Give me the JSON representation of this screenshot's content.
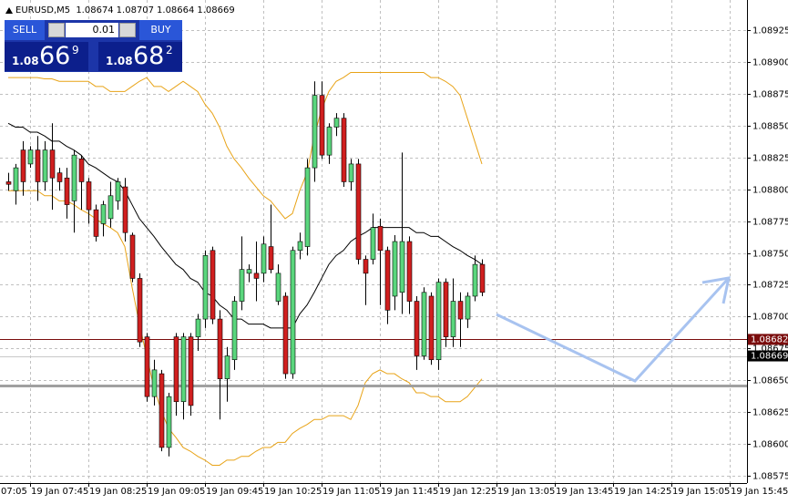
{
  "header": {
    "symbol": "EURUSD,M5",
    "ohlc": [
      "1.08674",
      "1.08707",
      "1.08664",
      "1.08669"
    ]
  },
  "trade_panel": {
    "sell": "SELL",
    "lot": "0.01",
    "buy": "BUY",
    "bid": {
      "big": "1.08",
      "pips": "66",
      "point": "9"
    },
    "ask": {
      "big": "1.08",
      "pips": "68",
      "point": "2"
    }
  },
  "chart_data": {
    "type": "candlestick",
    "categories": [
      "07:05",
      null,
      null,
      null,
      null,
      null,
      null,
      null,
      "19 Jan 07:45",
      null,
      null,
      null,
      null,
      null,
      null,
      null,
      "19 Jan 08:25",
      null,
      null,
      null,
      null,
      null,
      null,
      null,
      "19 Jan 09:05",
      null,
      null,
      null,
      null,
      null,
      null,
      null,
      "19 Jan 09:45",
      null,
      null,
      null,
      null,
      null,
      null,
      null,
      "19 Jan 10:25",
      null,
      null,
      null,
      null,
      null,
      null,
      null,
      "19 Jan 11:05",
      null,
      null,
      null,
      null,
      null,
      null,
      null,
      "19 Jan 11:45",
      null,
      null,
      null,
      null,
      null,
      null,
      null,
      "19 Jan 12:25",
      null,
      null,
      null,
      null,
      null,
      null,
      null,
      "19 Jan 13:05",
      null,
      null,
      null,
      null,
      null,
      null,
      null,
      "19 Jan 13:45",
      null,
      null,
      null,
      null,
      null,
      null,
      null,
      "19 Jan 14:25",
      null,
      null,
      null,
      null,
      null,
      null,
      null,
      "19 Jan 15:05",
      null,
      null,
      null,
      null,
      null,
      null,
      null,
      "19 Jan 15:45",
      null,
      null
    ],
    "open": [
      null,
      null,
      null,
      null,
      null,
      1.08806,
      1.08799,
      1.08831,
      1.0882,
      1.08831,
      1.08806,
      1.08831,
      1.08813,
      1.08809,
      1.08791,
      1.08824,
      1.08806,
      1.08784,
      1.08773,
      1.08777,
      1.08791,
      1.08802,
      1.08764,
      1.0873,
      1.08684,
      1.08637,
      1.08655,
      1.08597,
      1.08684,
      1.08633,
      1.08684,
      1.08684,
      1.08698,
      1.08752,
      1.08698,
      1.08651,
      1.08666,
      1.08712,
      1.08734,
      1.08734,
      1.08734,
      1.08755,
      1.08712,
      1.08716,
      1.08655,
      1.08752,
      1.08755,
      1.08817,
      1.08874,
      1.08827,
      1.08849,
      1.08856,
      1.08806,
      1.0882,
      1.08745,
      1.08745,
      1.08771,
      1.08752,
      1.08716,
      1.08719,
      1.08759,
      1.08712,
      1.08669,
      1.08716,
      1.08666,
      1.08727,
      1.08684,
      1.08712,
      1.08698,
      1.08716,
      1.08741,
      null,
      null,
      null,
      null,
      null,
      null,
      null,
      null,
      null,
      null,
      null,
      null,
      null,
      null,
      null,
      null,
      null,
      null,
      null,
      null,
      null,
      null,
      null,
      null,
      null,
      null,
      null,
      null,
      null,
      null,
      null,
      null,
      null,
      null,
      null,
      null
    ],
    "high": [
      null,
      null,
      null,
      null,
      null,
      1.08813,
      1.0882,
      1.08838,
      1.08834,
      1.08842,
      1.08838,
      1.08852,
      1.08817,
      1.08817,
      1.08831,
      1.08827,
      1.08809,
      1.08788,
      1.08791,
      1.08806,
      1.08809,
      1.08809,
      1.08766,
      1.08734,
      1.08687,
      1.08666,
      1.08658,
      1.0864,
      1.08687,
      1.08687,
      1.08687,
      1.08702,
      1.08752,
      1.08755,
      1.08705,
      1.08676,
      1.08716,
      1.08763,
      1.08741,
      1.08759,
      1.08763,
      1.08788,
      1.08741,
      1.08719,
      1.08755,
      1.08766,
      1.08824,
      1.08885,
      1.08885,
      1.08852,
      1.0886,
      1.0886,
      1.08824,
      1.08824,
      1.08748,
      1.08781,
      1.08777,
      1.08755,
      1.08764,
      1.08829,
      1.08763,
      1.08716,
      1.08723,
      1.08719,
      1.0873,
      1.0873,
      1.0873,
      1.08719,
      1.08719,
      1.08748,
      1.08745,
      null,
      null,
      null,
      null,
      null,
      null,
      null,
      null,
      null,
      null,
      null,
      null,
      null,
      null,
      null,
      null,
      null,
      null,
      null,
      null,
      null,
      null,
      null,
      null,
      null,
      null,
      null,
      null,
      null,
      null,
      null,
      null,
      null,
      null,
      null,
      null
    ],
    "low": [
      null,
      null,
      null,
      null,
      null,
      1.08799,
      1.08788,
      1.08795,
      1.08817,
      1.08791,
      1.08799,
      1.08784,
      1.08799,
      1.08777,
      1.08766,
      1.08784,
      1.08773,
      1.08759,
      1.08763,
      1.0877,
      1.08784,
      1.08759,
      1.08727,
      1.08676,
      1.08633,
      1.0863,
      1.08594,
      1.0859,
      1.08622,
      1.08619,
      1.08622,
      1.08673,
      1.08691,
      1.08694,
      1.08619,
      1.08633,
      1.08658,
      1.08705,
      1.08727,
      1.08712,
      1.08727,
      1.08734,
      1.08709,
      1.08651,
      1.08651,
      1.08745,
      1.08748,
      1.08806,
      1.08824,
      1.0882,
      1.08842,
      1.08802,
      1.08799,
      1.08741,
      1.08709,
      1.08741,
      1.08709,
      1.08694,
      1.08705,
      1.08702,
      1.08702,
      1.08658,
      1.08666,
      1.08662,
      1.08658,
      1.08676,
      1.08676,
      1.08676,
      1.08691,
      1.08712,
      1.08716,
      null,
      null,
      null,
      null,
      null,
      null,
      null,
      null,
      null,
      null,
      null,
      null,
      null,
      null,
      null,
      null,
      null,
      null,
      null,
      null,
      null,
      null,
      null,
      null,
      null,
      null,
      null,
      null,
      null,
      null,
      null,
      null,
      null,
      null,
      null,
      null
    ],
    "close": [
      null,
      null,
      null,
      null,
      null,
      1.08804,
      1.08817,
      1.08806,
      1.08831,
      1.08806,
      1.08831,
      1.08809,
      1.08806,
      1.08788,
      1.08827,
      1.08806,
      1.08784,
      1.08763,
      1.08788,
      1.08795,
      1.08806,
      1.08766,
      1.0873,
      1.0868,
      1.08637,
      1.08658,
      1.08597,
      1.08637,
      1.08633,
      1.08684,
      1.0863,
      1.08698,
      1.08748,
      1.08698,
      1.08651,
      1.08669,
      1.08712,
      1.08737,
      1.08737,
      1.0873,
      1.08757,
      1.08737,
      1.08734,
      1.08655,
      1.08752,
      1.08759,
      1.08817,
      1.08874,
      1.08827,
      1.08849,
      1.08856,
      1.08806,
      1.0882,
      1.08745,
      1.08734,
      1.0877,
      1.08752,
      1.08705,
      1.08759,
      1.08759,
      1.08712,
      1.08669,
      1.08719,
      1.08666,
      1.08727,
      1.08684,
      1.08712,
      1.08698,
      1.08716,
      1.08741,
      1.08719,
      null,
      null,
      null,
      null,
      null,
      null,
      null,
      null,
      null,
      null,
      null,
      null,
      null,
      null,
      null,
      null,
      null,
      null,
      null,
      null,
      null,
      null,
      null,
      null,
      null,
      null,
      null,
      null,
      null,
      null,
      null,
      null,
      null,
      null,
      null,
      null
    ],
    "up_color": "#5ad67d",
    "down_color": "#d01f1f",
    "wick_color": "#000000",
    "lines": [
      {
        "color": "#000000",
        "values": [
          null,
          null,
          null,
          null,
          null,
          1.08852,
          1.08849,
          1.08849,
          1.08845,
          1.08845,
          1.08842,
          1.08838,
          1.08838,
          1.08834,
          1.08831,
          1.08827,
          1.0882,
          1.08817,
          1.08813,
          1.08809,
          1.08806,
          1.08799,
          1.08788,
          1.08777,
          1.0877,
          1.08763,
          1.08755,
          1.08748,
          1.08741,
          1.08737,
          1.0873,
          1.08727,
          1.08719,
          1.08716,
          1.08709,
          1.08705,
          1.08698,
          1.08698,
          1.08694,
          1.08694,
          1.08694,
          1.08691,
          1.08691,
          1.08691,
          1.08691,
          1.08702,
          1.08709,
          1.08719,
          1.0873,
          1.08741,
          1.08748,
          1.08752,
          1.08759,
          1.08763,
          1.08766,
          1.0877,
          1.0877,
          1.0877,
          1.0877,
          1.0877,
          1.0877,
          1.08766,
          1.08766,
          1.08763,
          1.08763,
          1.08759,
          1.08755,
          1.08752,
          1.08748,
          1.08745,
          1.08741,
          null,
          null,
          null,
          null,
          null,
          null,
          null,
          null,
          null,
          null,
          null,
          null,
          null,
          null,
          null,
          null,
          null,
          null,
          null,
          null,
          null,
          null,
          null,
          null,
          null,
          null,
          null,
          null,
          null,
          null,
          null,
          null,
          null,
          null,
          null,
          null
        ]
      },
      {
        "color": "#e8a317",
        "values": [
          null,
          null,
          null,
          null,
          null,
          1.08888,
          1.08888,
          1.08888,
          1.08888,
          1.08888,
          1.08887,
          1.08887,
          1.08885,
          1.08885,
          1.08885,
          1.08885,
          1.08885,
          1.08881,
          1.08881,
          1.08877,
          1.08877,
          1.08877,
          1.08881,
          1.08885,
          1.08888,
          1.08881,
          1.08881,
          1.08877,
          1.08881,
          1.08885,
          1.08881,
          1.08877,
          1.08867,
          1.0886,
          1.08849,
          1.08834,
          1.08824,
          1.08817,
          1.08809,
          1.08802,
          1.08795,
          1.08791,
          1.08784,
          1.08777,
          1.08781,
          1.08799,
          1.08813,
          1.08842,
          1.08863,
          1.08877,
          1.08885,
          1.08888,
          1.08892,
          1.08892,
          1.08892,
          1.08892,
          1.08892,
          1.08892,
          1.08892,
          1.08892,
          1.08892,
          1.08892,
          1.08892,
          1.08888,
          1.08888,
          1.08885,
          1.08881,
          1.08874,
          1.08856,
          1.08838,
          1.0882,
          null,
          null,
          null,
          null,
          null,
          null,
          null,
          null,
          null,
          null,
          null,
          null,
          null,
          null,
          null,
          null,
          null,
          null,
          null,
          null,
          null,
          null,
          null,
          null,
          null,
          null,
          null,
          null,
          null,
          null,
          null,
          null,
          null,
          null,
          null,
          null
        ]
      },
      {
        "color": "#e8a317",
        "values": [
          null,
          null,
          null,
          null,
          null,
          1.08799,
          1.08799,
          1.08799,
          1.08799,
          1.08799,
          1.08795,
          1.08795,
          1.08791,
          1.08791,
          1.08788,
          1.08784,
          1.08781,
          1.08777,
          1.08773,
          1.0877,
          1.08766,
          1.08755,
          1.08723,
          1.08694,
          1.08669,
          1.08644,
          1.08626,
          1.08612,
          1.08605,
          1.08597,
          1.08594,
          1.0859,
          1.08587,
          1.08583,
          1.08583,
          1.08587,
          1.08587,
          1.0859,
          1.0859,
          1.08594,
          1.08597,
          1.08597,
          1.08601,
          1.08601,
          1.08608,
          1.08612,
          1.08615,
          1.08619,
          1.08619,
          1.08622,
          1.08622,
          1.08622,
          1.08619,
          1.0863,
          1.08648,
          1.08655,
          1.08658,
          1.08655,
          1.08655,
          1.08651,
          1.08648,
          1.0864,
          1.0864,
          1.08637,
          1.08637,
          1.08633,
          1.08633,
          1.08633,
          1.08637,
          1.08644,
          1.08651,
          null,
          null,
          null,
          null,
          null,
          null,
          null,
          null,
          null,
          null,
          null,
          null,
          null,
          null,
          null,
          null,
          null,
          null,
          null,
          null,
          null,
          null,
          null,
          null,
          null,
          null,
          null,
          null,
          null,
          null,
          null,
          null,
          null,
          null,
          null,
          null
        ]
      }
    ],
    "price_lines": [
      {
        "value": 1.08682,
        "color": "#7a0c0c",
        "width": 1,
        "tag_color": "#7a0c0c"
      },
      {
        "value": 1.08669,
        "color": "#c8c8c8",
        "width": 1,
        "tag_color": "#000000"
      },
      {
        "value": 1.08646,
        "color": "#a0a0a0",
        "width": 3
      }
    ],
    "ylim": [
      1.08569,
      1.08949
    ],
    "yticks": [
      1.08575,
      {
        "value": 1.086,
        "label": "1.08600"
      },
      1.08625,
      {
        "value": 1.0865,
        "label": "1.08650"
      },
      1.08675,
      {
        "value": 1.087,
        "label": "1.08700"
      },
      1.08725,
      {
        "value": 1.0875,
        "label": "1.08750"
      },
      1.08775,
      {
        "value": 1.088,
        "label": "1.08800"
      },
      1.08825,
      {
        "value": 1.0885,
        "label": "1.08850"
      },
      1.08875,
      {
        "value": 1.089,
        "label": "1.08900"
      },
      1.08925
    ],
    "grid": true
  }
}
